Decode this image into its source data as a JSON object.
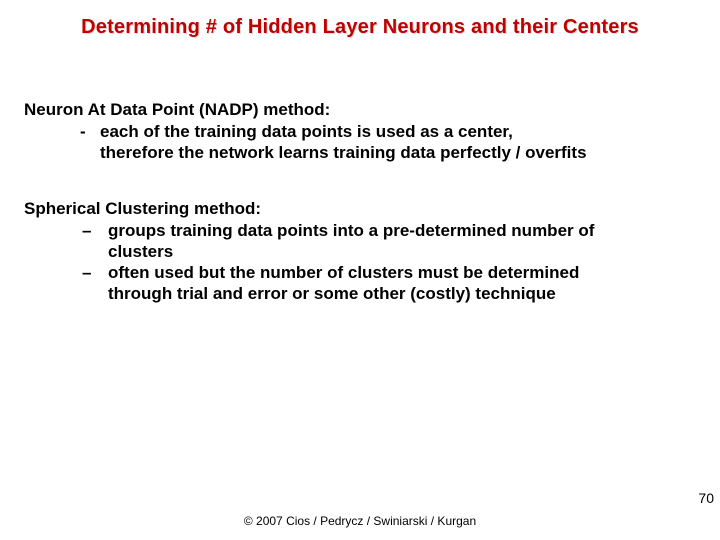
{
  "title": {
    "text": "Determining # of Hidden Layer Neurons and their Centers",
    "color": "#c10000",
    "fontsize": 20
  },
  "body_fontsize": 17,
  "section1": {
    "head": "Neuron At Data Point (NADP) method:",
    "dash": "-",
    "line1": "each of the training data points is used as a center,",
    "line2": "therefore the network learns training data perfectly / overfits"
  },
  "section2": {
    "head": "Spherical Clustering method:",
    "endash": "–",
    "b1_line1": "groups training data points into a pre-determined number of",
    "b1_line2": "clusters",
    "b2_line1": "often used but the number of clusters must be determined",
    "b2_line2": "through trial and error or some other (costly) technique"
  },
  "footer": {
    "copyright": "© 2007 Cios / Pedrycz / Swiniarski / Kurgan",
    "copyright_fontsize": 12,
    "page": "70",
    "page_fontsize": 14
  }
}
